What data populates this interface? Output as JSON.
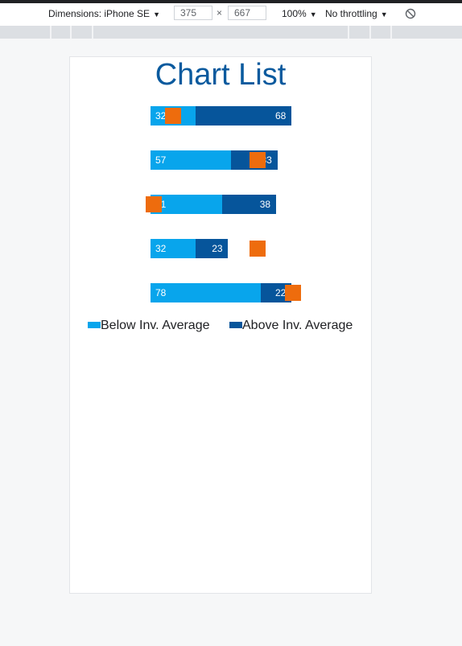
{
  "toolbar": {
    "dimensions_label": "Dimensions: iPhone SE",
    "width_value": "375",
    "height_value": "667",
    "times_symbol": "×",
    "zoom_label": "100%",
    "throttle_label": "No throttling",
    "caret": "▼",
    "rotate_icon": "rotate-icon"
  },
  "colors": {
    "below": "#08a5ec",
    "above": "#06559b",
    "marker": "#ee6c0d",
    "title": "#0a5a9e"
  },
  "chart_data": {
    "type": "bar",
    "orientation": "horizontal",
    "stacked": true,
    "title": "Chart List",
    "rows": [
      {
        "below": 32,
        "above": 68,
        "marker": 15
      },
      {
        "below": 57,
        "above": 33,
        "marker": 75
      },
      {
        "below": 51,
        "above": 38,
        "marker": 1
      },
      {
        "below": 32,
        "above": 23,
        "marker": 75
      },
      {
        "below": 78,
        "above": 22,
        "marker": 100
      }
    ],
    "series": [
      {
        "name": "Below Inv. Average"
      },
      {
        "name": "Above Inv. Average"
      }
    ],
    "legend_position": "bottom"
  }
}
